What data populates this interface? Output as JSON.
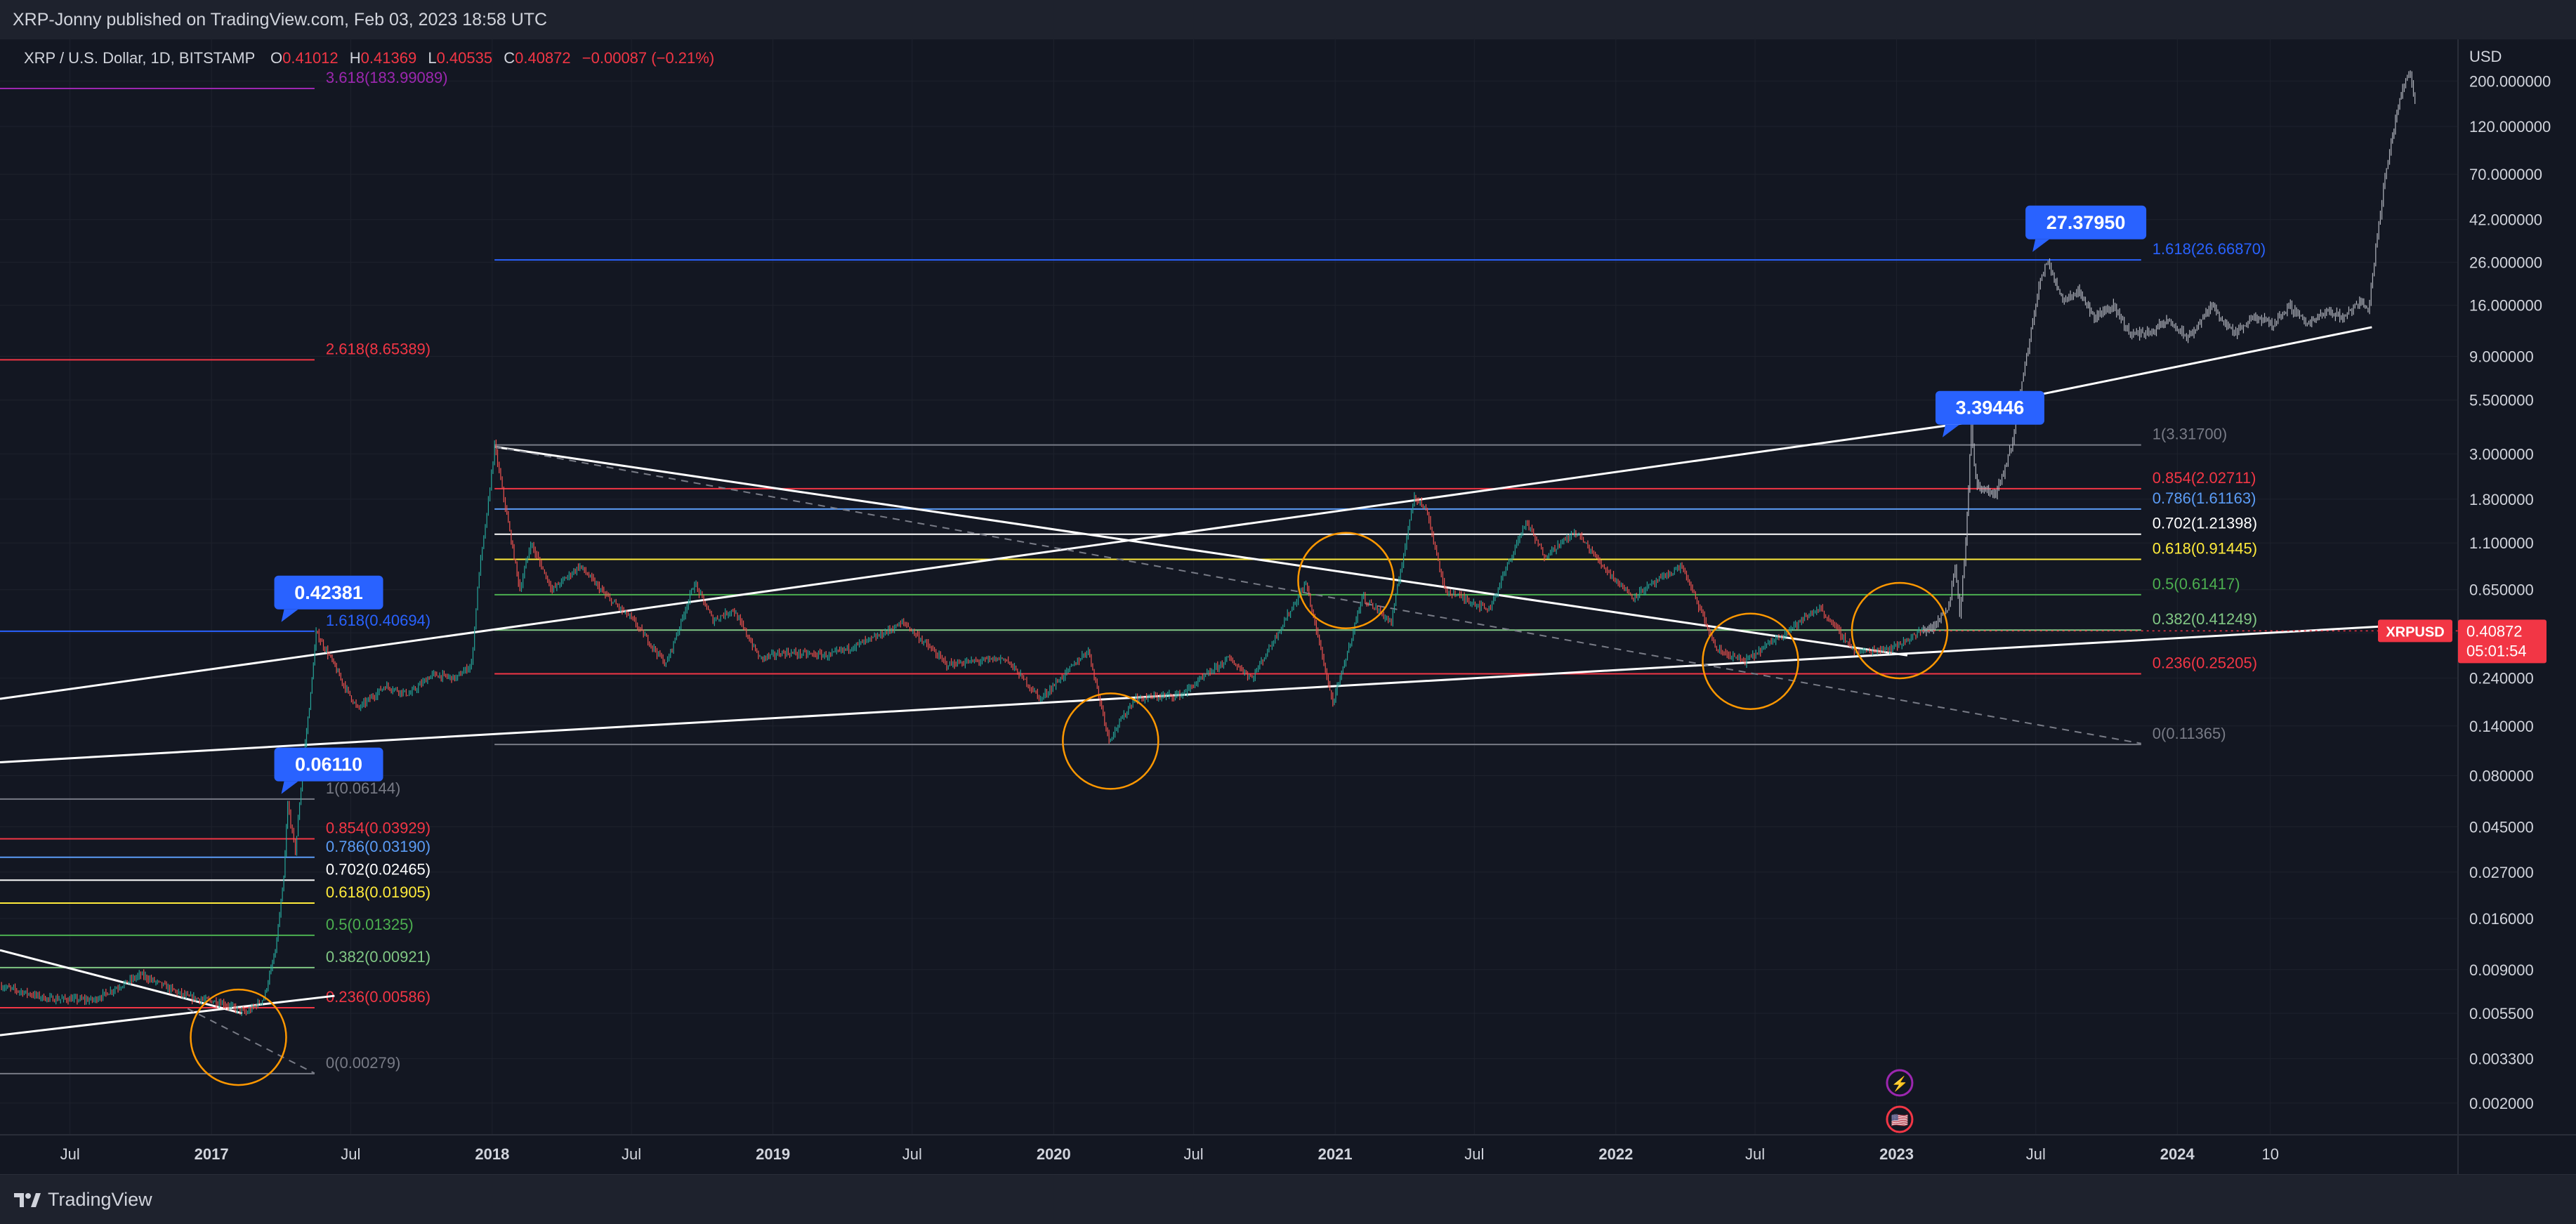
{
  "header": {
    "text": "XRP-Jonny published on TradingView.com, Feb 03, 2023 18:58 UTC"
  },
  "footer": {
    "brand": "TradingView"
  },
  "chart_data": {
    "type": "candlestick",
    "symbol_line": {
      "name": "XRP / U.S. Dollar, 1D, BITSTAMP",
      "o_label": "O",
      "o": "0.41012",
      "h_label": "H",
      "h": "0.41369",
      "l_label": "L",
      "l": "0.40535",
      "c_label": "C",
      "c": "0.40872",
      "change": "−0.00087 (−0.21%)"
    },
    "currency": "USD",
    "y_scale": "log",
    "ylim": [
      0.0014,
      320
    ],
    "y_ticks": [
      "200.000000",
      "120.000000",
      "70.000000",
      "42.000000",
      "26.000000",
      "16.000000",
      "9.000000",
      "5.500000",
      "3.000000",
      "1.800000",
      "1.100000",
      "0.650000",
      "0.400000",
      "0.240000",
      "0.140000",
      "0.080000",
      "0.045000",
      "0.027000",
      "0.016000",
      "0.009000",
      "0.005500",
      "0.003300",
      "0.002000"
    ],
    "y_tick_values": [
      200,
      120,
      70,
      42,
      26,
      16,
      9,
      5.5,
      3,
      1.8,
      1.1,
      0.65,
      0.4,
      0.24,
      0.14,
      0.08,
      0.045,
      0.027,
      0.016,
      0.009,
      0.0055,
      0.0033,
      0.002
    ],
    "x_range": [
      "2016-04-01",
      "2024-12-31"
    ],
    "x_ticks": [
      {
        "date": "2016-07-01",
        "label": "Jul",
        "bold": false
      },
      {
        "date": "2017-01-01",
        "label": "2017",
        "bold": true
      },
      {
        "date": "2017-07-01",
        "label": "Jul",
        "bold": false
      },
      {
        "date": "2018-01-01",
        "label": "2018",
        "bold": true
      },
      {
        "date": "2018-07-01",
        "label": "Jul",
        "bold": false
      },
      {
        "date": "2019-01-01",
        "label": "2019",
        "bold": true
      },
      {
        "date": "2019-07-01",
        "label": "Jul",
        "bold": false
      },
      {
        "date": "2020-01-01",
        "label": "2020",
        "bold": true
      },
      {
        "date": "2020-07-01",
        "label": "Jul",
        "bold": false
      },
      {
        "date": "2021-01-01",
        "label": "2021",
        "bold": true
      },
      {
        "date": "2021-07-01",
        "label": "Jul",
        "bold": false
      },
      {
        "date": "2022-01-01",
        "label": "2022",
        "bold": true
      },
      {
        "date": "2022-07-01",
        "label": "Jul",
        "bold": false
      },
      {
        "date": "2023-01-01",
        "label": "2023",
        "bold": true
      },
      {
        "date": "2023-07-01",
        "label": "Jul",
        "bold": false
      },
      {
        "date": "2024-01-01",
        "label": "2024",
        "bold": true
      },
      {
        "date": "2024-05-01",
        "label": "10",
        "bold": false
      }
    ],
    "price_tag": {
      "symbol": "XRPUSD",
      "price": "0.40872",
      "countdown": "05:01:54",
      "value": 0.40872,
      "color": "#f23645"
    },
    "historical_series": {
      "name": "XRPUSD",
      "colors": {
        "up": "#26a69a",
        "down": "#ef5350"
      },
      "points": [
        [
          "2016-04-01",
          0.0075
        ],
        [
          "2016-06-01",
          0.0065
        ],
        [
          "2016-08-01",
          0.0064
        ],
        [
          "2016-10-01",
          0.0085
        ],
        [
          "2016-12-01",
          0.0066
        ],
        [
          "2017-01-15",
          0.0062
        ],
        [
          "2017-02-15",
          0.0055
        ],
        [
          "2017-03-10",
          0.0065
        ],
        [
          "2017-03-25",
          0.011
        ],
        [
          "2017-04-05",
          0.025
        ],
        [
          "2017-04-10",
          0.058
        ],
        [
          "2017-04-20",
          0.034
        ],
        [
          "2017-05-01",
          0.1
        ],
        [
          "2017-05-10",
          0.2
        ],
        [
          "2017-05-17",
          0.4
        ],
        [
          "2017-06-05",
          0.3
        ],
        [
          "2017-06-20",
          0.23
        ],
        [
          "2017-07-10",
          0.17
        ],
        [
          "2017-08-15",
          0.22
        ],
        [
          "2017-09-15",
          0.2
        ],
        [
          "2017-10-15",
          0.25
        ],
        [
          "2017-11-15",
          0.24
        ],
        [
          "2017-12-05",
          0.28
        ],
        [
          "2017-12-15",
          0.8
        ],
        [
          "2017-12-25",
          1.5
        ],
        [
          "2018-01-04",
          3.3
        ],
        [
          "2018-01-20",
          1.5
        ],
        [
          "2018-02-06",
          0.65
        ],
        [
          "2018-02-20",
          1.1
        ],
        [
          "2018-03-20",
          0.65
        ],
        [
          "2018-04-25",
          0.85
        ],
        [
          "2018-05-30",
          0.6
        ],
        [
          "2018-07-01",
          0.47
        ],
        [
          "2018-08-15",
          0.28
        ],
        [
          "2018-09-21",
          0.7
        ],
        [
          "2018-10-15",
          0.46
        ],
        [
          "2018-11-10",
          0.52
        ],
        [
          "2018-12-15",
          0.3
        ],
        [
          "2019-01-15",
          0.32
        ],
        [
          "2019-03-15",
          0.31
        ],
        [
          "2019-05-15",
          0.38
        ],
        [
          "2019-06-20",
          0.45
        ],
        [
          "2019-08-15",
          0.28
        ],
        [
          "2019-09-20",
          0.29
        ],
        [
          "2019-10-30",
          0.3
        ],
        [
          "2019-12-15",
          0.19
        ],
        [
          "2020-02-15",
          0.33
        ],
        [
          "2020-03-13",
          0.12
        ],
        [
          "2020-04-15",
          0.19
        ],
        [
          "2020-06-15",
          0.2
        ],
        [
          "2020-08-15",
          0.3
        ],
        [
          "2020-09-15",
          0.24
        ],
        [
          "2020-11-24",
          0.7
        ],
        [
          "2020-12-29",
          0.18
        ],
        [
          "2021-01-15",
          0.3
        ],
        [
          "2021-02-05",
          0.6
        ],
        [
          "2021-03-15",
          0.45
        ],
        [
          "2021-04-14",
          1.9
        ],
        [
          "2021-05-01",
          1.55
        ],
        [
          "2021-05-23",
          0.65
        ],
        [
          "2021-07-20",
          0.52
        ],
        [
          "2021-09-06",
          1.4
        ],
        [
          "2021-09-30",
          0.95
        ],
        [
          "2021-11-10",
          1.25
        ],
        [
          "2021-12-15",
          0.85
        ],
        [
          "2022-01-22",
          0.6
        ],
        [
          "2022-03-28",
          0.85
        ],
        [
          "2022-05-12",
          0.33
        ],
        [
          "2022-06-18",
          0.29
        ],
        [
          "2022-07-30",
          0.38
        ],
        [
          "2022-09-23",
          0.53
        ],
        [
          "2022-11-09",
          0.32
        ],
        [
          "2022-12-29",
          0.34
        ],
        [
          "2023-02-03",
          0.40872
        ]
      ]
    },
    "projection_series": {
      "name": "projection",
      "color": "#b2b5be",
      "points": [
        [
          "2023-02-03",
          0.41
        ],
        [
          "2023-02-20",
          0.43
        ],
        [
          "2023-03-10",
          0.55
        ],
        [
          "2023-03-18",
          0.85
        ],
        [
          "2023-03-24",
          0.5
        ],
        [
          "2023-04-01",
          1.1
        ],
        [
          "2023-04-08",
          4.0
        ],
        [
          "2023-04-14",
          2.2
        ],
        [
          "2023-04-25",
          2.0
        ],
        [
          "2023-05-10",
          1.9
        ],
        [
          "2023-05-20",
          2.4
        ],
        [
          "2023-06-01",
          3.5
        ],
        [
          "2023-06-15",
          7.5
        ],
        [
          "2023-06-25",
          12.0
        ],
        [
          "2023-07-05",
          20.0
        ],
        [
          "2023-07-15",
          26.0
        ],
        [
          "2023-07-25",
          22.0
        ],
        [
          "2023-08-05",
          17.0
        ],
        [
          "2023-08-25",
          19.0
        ],
        [
          "2023-09-15",
          14.0
        ],
        [
          "2023-10-10",
          16.0
        ],
        [
          "2023-11-01",
          11.5
        ],
        [
          "2023-12-01",
          12.0
        ],
        [
          "2023-12-20",
          13.5
        ],
        [
          "2024-01-15",
          11.0
        ],
        [
          "2024-02-15",
          16.0
        ],
        [
          "2024-03-15",
          11.5
        ],
        [
          "2024-04-10",
          14.0
        ],
        [
          "2024-05-05",
          13.0
        ],
        [
          "2024-05-25",
          16.0
        ],
        [
          "2024-06-20",
          13.0
        ],
        [
          "2024-07-15",
          15.0
        ],
        [
          "2024-08-05",
          14.0
        ],
        [
          "2024-08-25",
          17.0
        ],
        [
          "2024-09-05",
          15.0
        ],
        [
          "2024-09-15",
          30.0
        ],
        [
          "2024-09-25",
          60.0
        ],
        [
          "2024-10-05",
          100.0
        ],
        [
          "2024-10-20",
          190.0
        ],
        [
          "2024-10-30",
          220.0
        ],
        [
          "2024-11-05",
          160.0
        ]
      ]
    },
    "fib_sets": [
      {
        "x_start": "2016-04-01",
        "x_end": "2017-05-15",
        "label_x": "2017-05-15",
        "levels": [
          {
            "label": "1(0.06144)",
            "value": 0.06144,
            "color": "#787b86"
          },
          {
            "label": "0.854(0.03929)",
            "value": 0.03929,
            "color": "#f23645"
          },
          {
            "label": "0.786(0.03190)",
            "value": 0.0319,
            "color": "#5b9cf6"
          },
          {
            "label": "0.702(0.02465)",
            "value": 0.02465,
            "color": "#ffffff"
          },
          {
            "label": "0.618(0.01905)",
            "value": 0.01905,
            "color": "#ffeb3b"
          },
          {
            "label": "0.5(0.01325)",
            "value": 0.01325,
            "color": "#4caf50"
          },
          {
            "label": "0.382(0.00921)",
            "value": 0.00921,
            "color": "#81c784"
          },
          {
            "label": "0.236(0.00586)",
            "value": 0.00586,
            "color": "#f23645"
          },
          {
            "label": "0(0.00279)",
            "value": 0.00279,
            "color": "#787b86"
          }
        ]
      },
      {
        "x_start": "2016-04-01",
        "x_end": "2017-05-15",
        "label_x": "2017-05-15",
        "levels": [
          {
            "label": "3.618(183.99089)",
            "value": 183.99089,
            "color": "#9c27b0"
          },
          {
            "label": "2.618(8.65389)",
            "value": 8.65389,
            "color": "#f23645"
          },
          {
            "label": "1.618(0.40694)",
            "value": 0.40694,
            "color": "#2962ff"
          }
        ]
      },
      {
        "x_start": "2018-01-04",
        "x_end": "2023-11-15",
        "label_x": "2023-11-15",
        "levels": [
          {
            "label": "1(3.31700)",
            "value": 3.317,
            "color": "#787b86"
          },
          {
            "label": "0.854(2.02711)",
            "value": 2.02711,
            "color": "#f23645"
          },
          {
            "label": "0.786(1.61163)",
            "value": 1.61163,
            "color": "#5b9cf6"
          },
          {
            "label": "0.702(1.21398)",
            "value": 1.21398,
            "color": "#ffffff"
          },
          {
            "label": "0.618(0.91445)",
            "value": 0.91445,
            "color": "#ffeb3b"
          },
          {
            "label": "0.5(0.61417)",
            "value": 0.61417,
            "color": "#4caf50"
          },
          {
            "label": "0.382(0.41249)",
            "value": 0.41249,
            "color": "#81c784"
          },
          {
            "label": "0.236(0.25205)",
            "value": 0.25205,
            "color": "#f23645"
          },
          {
            "label": "0(0.11365)",
            "value": 0.11365,
            "color": "#787b86"
          },
          {
            "label": "1.618(26.66870)",
            "value": 26.6687,
            "color": "#2962ff"
          }
        ]
      }
    ],
    "callouts": [
      {
        "text": "0.42381",
        "date": "2017-04-20",
        "value": 0.42381
      },
      {
        "text": "0.06110",
        "date": "2017-04-20",
        "value": 0.0611
      },
      {
        "text": "3.39446",
        "date": "2023-03-20",
        "value": 3.39446
      },
      {
        "text": "27.37950",
        "date": "2023-07-15",
        "value": 27.3795
      }
    ],
    "trendlines": [
      {
        "from": [
          "2016-04-01",
          0.19
        ],
        "to": [
          "2023-04-10",
          4.3
        ],
        "color": "#ffffff",
        "dash": false
      },
      {
        "from": [
          "2016-04-01",
          0.093
        ],
        "to": [
          "2024-11-10",
          0.44
        ],
        "color": "#ffffff",
        "dash": false
      },
      {
        "from": [
          "2018-01-04",
          3.25
        ],
        "to": [
          "2023-01-15",
          0.31
        ],
        "color": "#ffffff",
        "dash": false
      },
      {
        "from": [
          "2018-01-04",
          3.25
        ],
        "to": [
          "2023-11-15",
          0.115
        ],
        "color": "#787b86",
        "dash": true
      },
      {
        "from": [
          "2023-03-15",
          4.8
        ],
        "to": [
          "2024-09-10",
          12.5
        ],
        "color": "#ffffff",
        "dash": false
      },
      {
        "from": [
          "2016-04-01",
          0.0112
        ],
        "to": [
          "2017-02-10",
          0.0055
        ],
        "color": "#ffffff",
        "dash": false
      },
      {
        "from": [
          "2016-04-01",
          0.0043
        ],
        "to": [
          "2017-06-10",
          0.0067
        ],
        "color": "#ffffff",
        "dash": false
      },
      {
        "from": [
          "2016-12-01",
          0.0058
        ],
        "to": [
          "2017-05-15",
          0.0028
        ],
        "color": "#787b86",
        "dash": true
      }
    ],
    "circles": [
      {
        "date": "2017-02-05",
        "value": 0.0042
      },
      {
        "date": "2020-03-15",
        "value": 0.118
      },
      {
        "date": "2021-01-15",
        "value": 0.72
      },
      {
        "date": "2022-06-25",
        "value": 0.29
      },
      {
        "date": "2023-01-05",
        "value": 0.41
      }
    ],
    "event_icons": [
      {
        "name": "lightning-icon",
        "date": "2023-01-05",
        "glyph": "⚡",
        "color": "#9c27b0"
      },
      {
        "name": "us-flag-icon",
        "date": "2023-01-05",
        "glyph": "🇺🇸",
        "color": "#f23645"
      }
    ],
    "colors": {
      "background": "#131722",
      "grid": "#1e222d",
      "callout": "#2962ff",
      "circle": "#ff9800",
      "axis_text": "#d1d4dc"
    }
  }
}
